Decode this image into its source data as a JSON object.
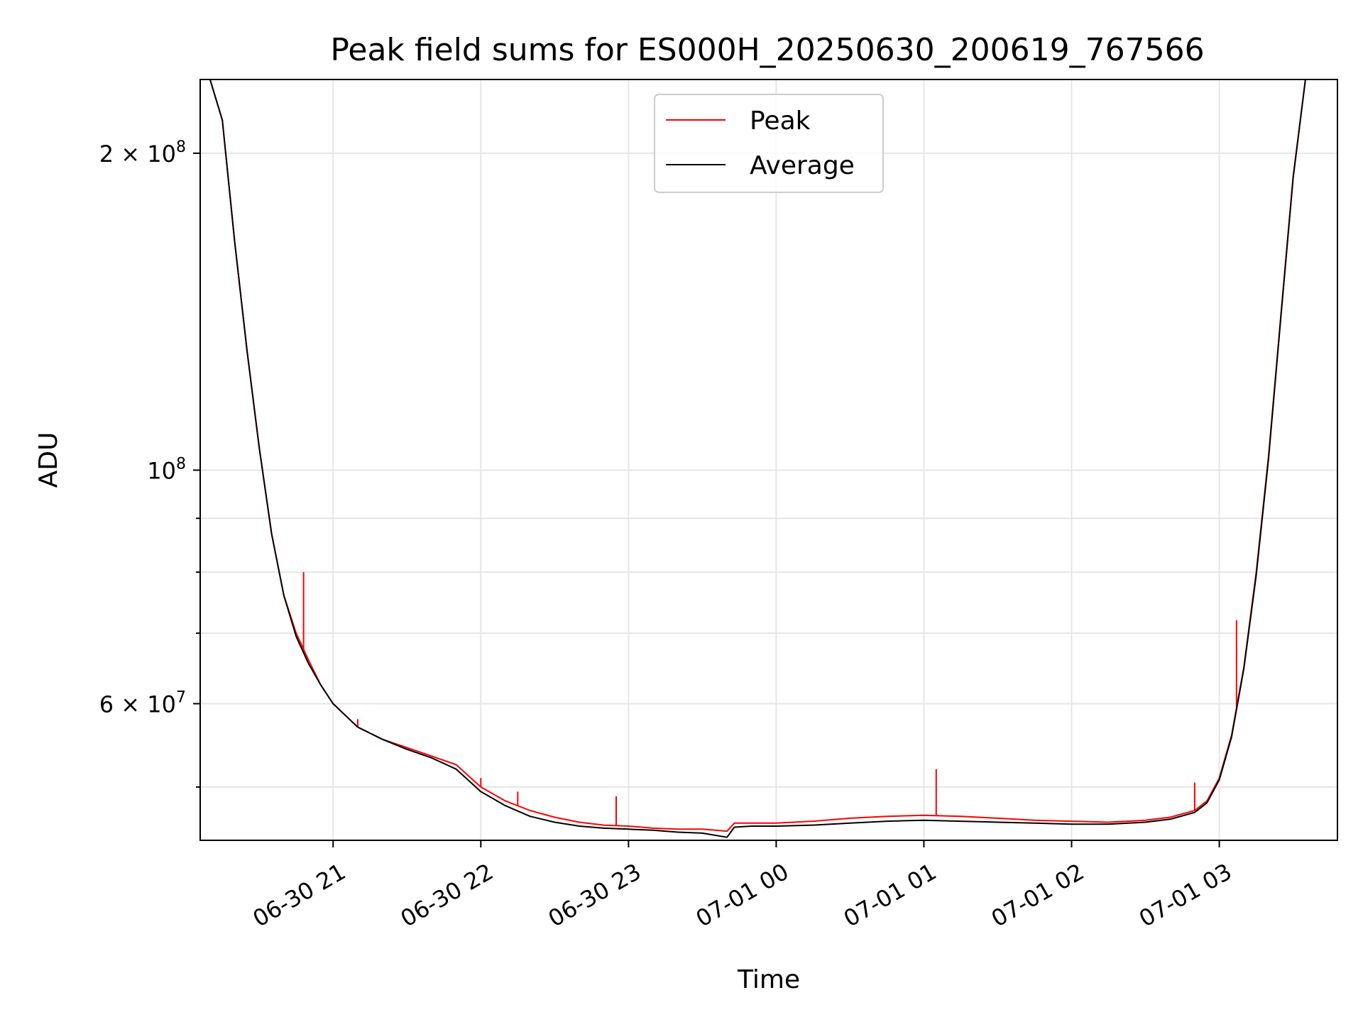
{
  "chart_data": {
    "type": "line",
    "title": "Peak field sums for ES000H_20250630_200619_767566",
    "xlabel": "Time",
    "ylabel": "ADU",
    "yscale": "log",
    "grid": true,
    "legend_position": "upper-center",
    "xlim": [
      "2025-06-30 20:06",
      "2025-07-01 03:48"
    ],
    "ylim": [
      44500000,
      235000000
    ],
    "x_ticks": [
      {
        "value": "2025-06-30 21:00",
        "label": "06-30 21"
      },
      {
        "value": "2025-06-30 22:00",
        "label": "06-30 22"
      },
      {
        "value": "2025-06-30 23:00",
        "label": "06-30 23"
      },
      {
        "value": "2025-07-01 00:00",
        "label": "07-01 00"
      },
      {
        "value": "2025-07-01 01:00",
        "label": "07-01 01"
      },
      {
        "value": "2025-07-01 02:00",
        "label": "07-01 02"
      },
      {
        "value": "2025-07-01 03:00",
        "label": "07-01 03"
      }
    ],
    "y_major_ticks": [
      {
        "value": 200000000,
        "label_base": "2 × 10",
        "label_exp": "8"
      },
      {
        "value": 100000000,
        "label_base": "10",
        "label_exp": "8"
      },
      {
        "value": 60000000,
        "label_base": "6 × 10",
        "label_exp": "7"
      }
    ],
    "y_minor_ticks": [
      50000000,
      70000000,
      80000000,
      90000000
    ],
    "series": [
      {
        "name": "Peak",
        "color": "#ff0000",
        "x": [
          "2025-06-30 20:06",
          "2025-06-30 20:10",
          "2025-06-30 20:15",
          "2025-06-30 20:20",
          "2025-06-30 20:25",
          "2025-06-30 20:30",
          "2025-06-30 20:35",
          "2025-06-30 20:40",
          "2025-06-30 20:45",
          "2025-06-30 20:50",
          "2025-06-30 20:55",
          "2025-06-30 21:00",
          "2025-06-30 21:10",
          "2025-06-30 21:20",
          "2025-06-30 21:30",
          "2025-06-30 21:40",
          "2025-06-30 21:50",
          "2025-06-30 22:00",
          "2025-06-30 22:10",
          "2025-06-30 22:20",
          "2025-06-30 22:30",
          "2025-06-30 22:40",
          "2025-06-30 22:50",
          "2025-06-30 23:00",
          "2025-06-30 23:10",
          "2025-06-30 23:20",
          "2025-06-30 23:30",
          "2025-06-30 23:40",
          "2025-06-30 23:43",
          "2025-06-30 23:50",
          "2025-07-01 00:00",
          "2025-07-01 00:15",
          "2025-07-01 00:30",
          "2025-07-01 00:45",
          "2025-07-01 01:00",
          "2025-07-01 01:15",
          "2025-07-01 01:30",
          "2025-07-01 01:45",
          "2025-07-01 02:00",
          "2025-07-01 02:15",
          "2025-07-01 02:30",
          "2025-07-01 02:40",
          "2025-07-01 02:50",
          "2025-07-01 02:55",
          "2025-07-01 03:00",
          "2025-07-01 03:05",
          "2025-07-01 03:10",
          "2025-07-01 03:15",
          "2025-07-01 03:20",
          "2025-07-01 03:25",
          "2025-07-01 03:30",
          "2025-07-01 03:35",
          "2025-07-01 03:48"
        ],
        "y": [
          235000000,
          235000000,
          215000000,
          165000000,
          130000000,
          105000000,
          87000000,
          76000000,
          70000000,
          66000000,
          62500000,
          60000000,
          57000000,
          55500000,
          54500000,
          53500000,
          52500000,
          50000000,
          48500000,
          47500000,
          46800000,
          46300000,
          46000000,
          45900000,
          45700000,
          45600000,
          45600000,
          45400000,
          46200000,
          46200000,
          46200000,
          46400000,
          46700000,
          46900000,
          47000000,
          46900000,
          46700000,
          46500000,
          46400000,
          46300000,
          46500000,
          46800000,
          47500000,
          48500000,
          51000000,
          56000000,
          65000000,
          80000000,
          103000000,
          140000000,
          190000000,
          235000000,
          235000000
        ],
        "spikes": [
          {
            "x": "2025-06-30 20:48",
            "y": 80000000
          },
          {
            "x": "2025-06-30 21:10",
            "y": 58000000
          },
          {
            "x": "2025-06-30 22:00",
            "y": 51000000
          },
          {
            "x": "2025-06-30 22:15",
            "y": 49500000
          },
          {
            "x": "2025-06-30 22:55",
            "y": 49000000
          },
          {
            "x": "2025-07-01 01:05",
            "y": 52000000
          },
          {
            "x": "2025-07-01 02:50",
            "y": 50500000
          },
          {
            "x": "2025-07-01 03:07",
            "y": 72000000
          }
        ]
      },
      {
        "name": "Average",
        "color": "#000000",
        "x": [
          "2025-06-30 20:06",
          "2025-06-30 20:10",
          "2025-06-30 20:15",
          "2025-06-30 20:20",
          "2025-06-30 20:25",
          "2025-06-30 20:30",
          "2025-06-30 20:35",
          "2025-06-30 20:40",
          "2025-06-30 20:45",
          "2025-06-30 20:50",
          "2025-06-30 20:55",
          "2025-06-30 21:00",
          "2025-06-30 21:10",
          "2025-06-30 21:20",
          "2025-06-30 21:30",
          "2025-06-30 21:40",
          "2025-06-30 21:50",
          "2025-06-30 22:00",
          "2025-06-30 22:10",
          "2025-06-30 22:20",
          "2025-06-30 22:30",
          "2025-06-30 22:40",
          "2025-06-30 22:50",
          "2025-06-30 23:00",
          "2025-06-30 23:10",
          "2025-06-30 23:20",
          "2025-06-30 23:30",
          "2025-06-30 23:40",
          "2025-06-30 23:43",
          "2025-06-30 23:50",
          "2025-07-01 00:00",
          "2025-07-01 00:15",
          "2025-07-01 00:30",
          "2025-07-01 00:45",
          "2025-07-01 01:00",
          "2025-07-01 01:15",
          "2025-07-01 01:30",
          "2025-07-01 01:45",
          "2025-07-01 02:00",
          "2025-07-01 02:15",
          "2025-07-01 02:30",
          "2025-07-01 02:40",
          "2025-07-01 02:50",
          "2025-07-01 02:55",
          "2025-07-01 03:00",
          "2025-07-01 03:05",
          "2025-07-01 03:10",
          "2025-07-01 03:15",
          "2025-07-01 03:20",
          "2025-07-01 03:25",
          "2025-07-01 03:30",
          "2025-07-01 03:35",
          "2025-07-01 03:48"
        ],
        "y": [
          235000000,
          235000000,
          215000000,
          165000000,
          130000000,
          105000000,
          87000000,
          76000000,
          69500000,
          65500000,
          62500000,
          60000000,
          57000000,
          55500000,
          54300000,
          53300000,
          52000000,
          49500000,
          48000000,
          46900000,
          46300000,
          45900000,
          45700000,
          45600000,
          45500000,
          45300000,
          45200000,
          44800000,
          45800000,
          45900000,
          45900000,
          46000000,
          46200000,
          46400000,
          46500000,
          46400000,
          46300000,
          46200000,
          46100000,
          46100000,
          46300000,
          46600000,
          47300000,
          48300000,
          50800000,
          55800000,
          64800000,
          79500000,
          102500000,
          139500000,
          189500000,
          235000000,
          235000000
        ]
      }
    ]
  }
}
